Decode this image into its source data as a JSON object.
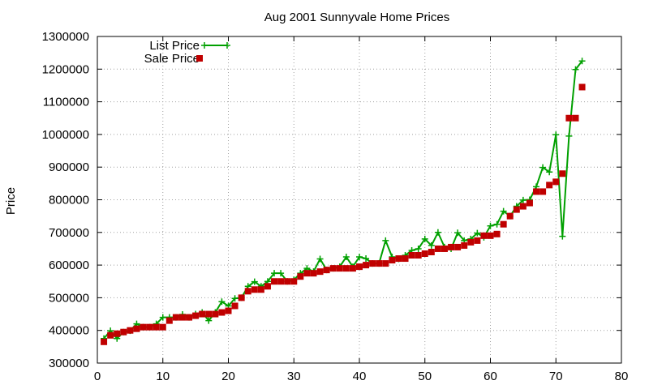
{
  "chart_data": {
    "type": "line",
    "title": "Aug 2001 Sunnyvale Home Prices",
    "xlabel": "",
    "ylabel": "Price",
    "xlim": [
      0,
      80
    ],
    "ylim": [
      300000,
      1300000
    ],
    "xticks": [
      0,
      10,
      20,
      30,
      40,
      50,
      60,
      70,
      80
    ],
    "yticks": [
      300000,
      400000,
      500000,
      600000,
      700000,
      800000,
      900000,
      1000000,
      1100000,
      1200000,
      1300000
    ],
    "grid": true,
    "legend": "top-left",
    "x": [
      1,
      2,
      3,
      4,
      5,
      6,
      7,
      8,
      9,
      10,
      11,
      12,
      13,
      14,
      15,
      16,
      17,
      18,
      19,
      20,
      21,
      22,
      23,
      24,
      25,
      26,
      27,
      28,
      29,
      30,
      31,
      32,
      33,
      34,
      35,
      36,
      37,
      38,
      39,
      40,
      41,
      42,
      43,
      44,
      45,
      46,
      47,
      48,
      49,
      50,
      51,
      52,
      53,
      54,
      55,
      56,
      57,
      58,
      59,
      60,
      61,
      62,
      63,
      64,
      65,
      66,
      67,
      68,
      69,
      70,
      71,
      72,
      73,
      74
    ],
    "series": [
      {
        "name": "List Price",
        "color": "#00a000",
        "style": "line-plus",
        "values": [
          375000,
          399000,
          375000,
          395000,
          399000,
          420000,
          410000,
          410000,
          420000,
          440000,
          440000,
          440000,
          449000,
          440000,
          450000,
          455000,
          430000,
          455000,
          488000,
          475000,
          498000,
          500000,
          535000,
          549000,
          535000,
          550000,
          575000,
          575000,
          550000,
          555000,
          575000,
          590000,
          580000,
          619000,
          585000,
          590000,
          595000,
          625000,
          595000,
          625000,
          620000,
          605000,
          605000,
          675000,
          625000,
          619000,
          630000,
          645000,
          650000,
          680000,
          660000,
          700000,
          655000,
          650000,
          699000,
          675000,
          680000,
          698000,
          685000,
          720000,
          725000,
          765000,
          750000,
          780000,
          799000,
          800000,
          840000,
          899000,
          885000,
          999000,
          688000,
          995000,
          1199000,
          1225000
        ]
      },
      {
        "name": "Sale Price",
        "color": "#c00000",
        "style": "squares",
        "values": [
          365000,
          385000,
          390000,
          395000,
          400000,
          405000,
          410000,
          410000,
          410000,
          410000,
          430000,
          440000,
          440000,
          440000,
          445000,
          450000,
          450000,
          450000,
          455000,
          460000,
          475000,
          500000,
          520000,
          525000,
          525000,
          535000,
          550000,
          550000,
          550000,
          550000,
          565000,
          575000,
          575000,
          580000,
          585000,
          590000,
          590000,
          590000,
          590000,
          595000,
          600000,
          605000,
          605000,
          605000,
          615000,
          620000,
          620000,
          630000,
          630000,
          635000,
          640000,
          650000,
          650000,
          655000,
          655000,
          660000,
          670000,
          675000,
          690000,
          690000,
          695000,
          725000,
          750000,
          770000,
          780000,
          790000,
          825000,
          825000,
          845000,
          855000,
          880000,
          1050000,
          1050000,
          1145000
        ]
      }
    ]
  }
}
